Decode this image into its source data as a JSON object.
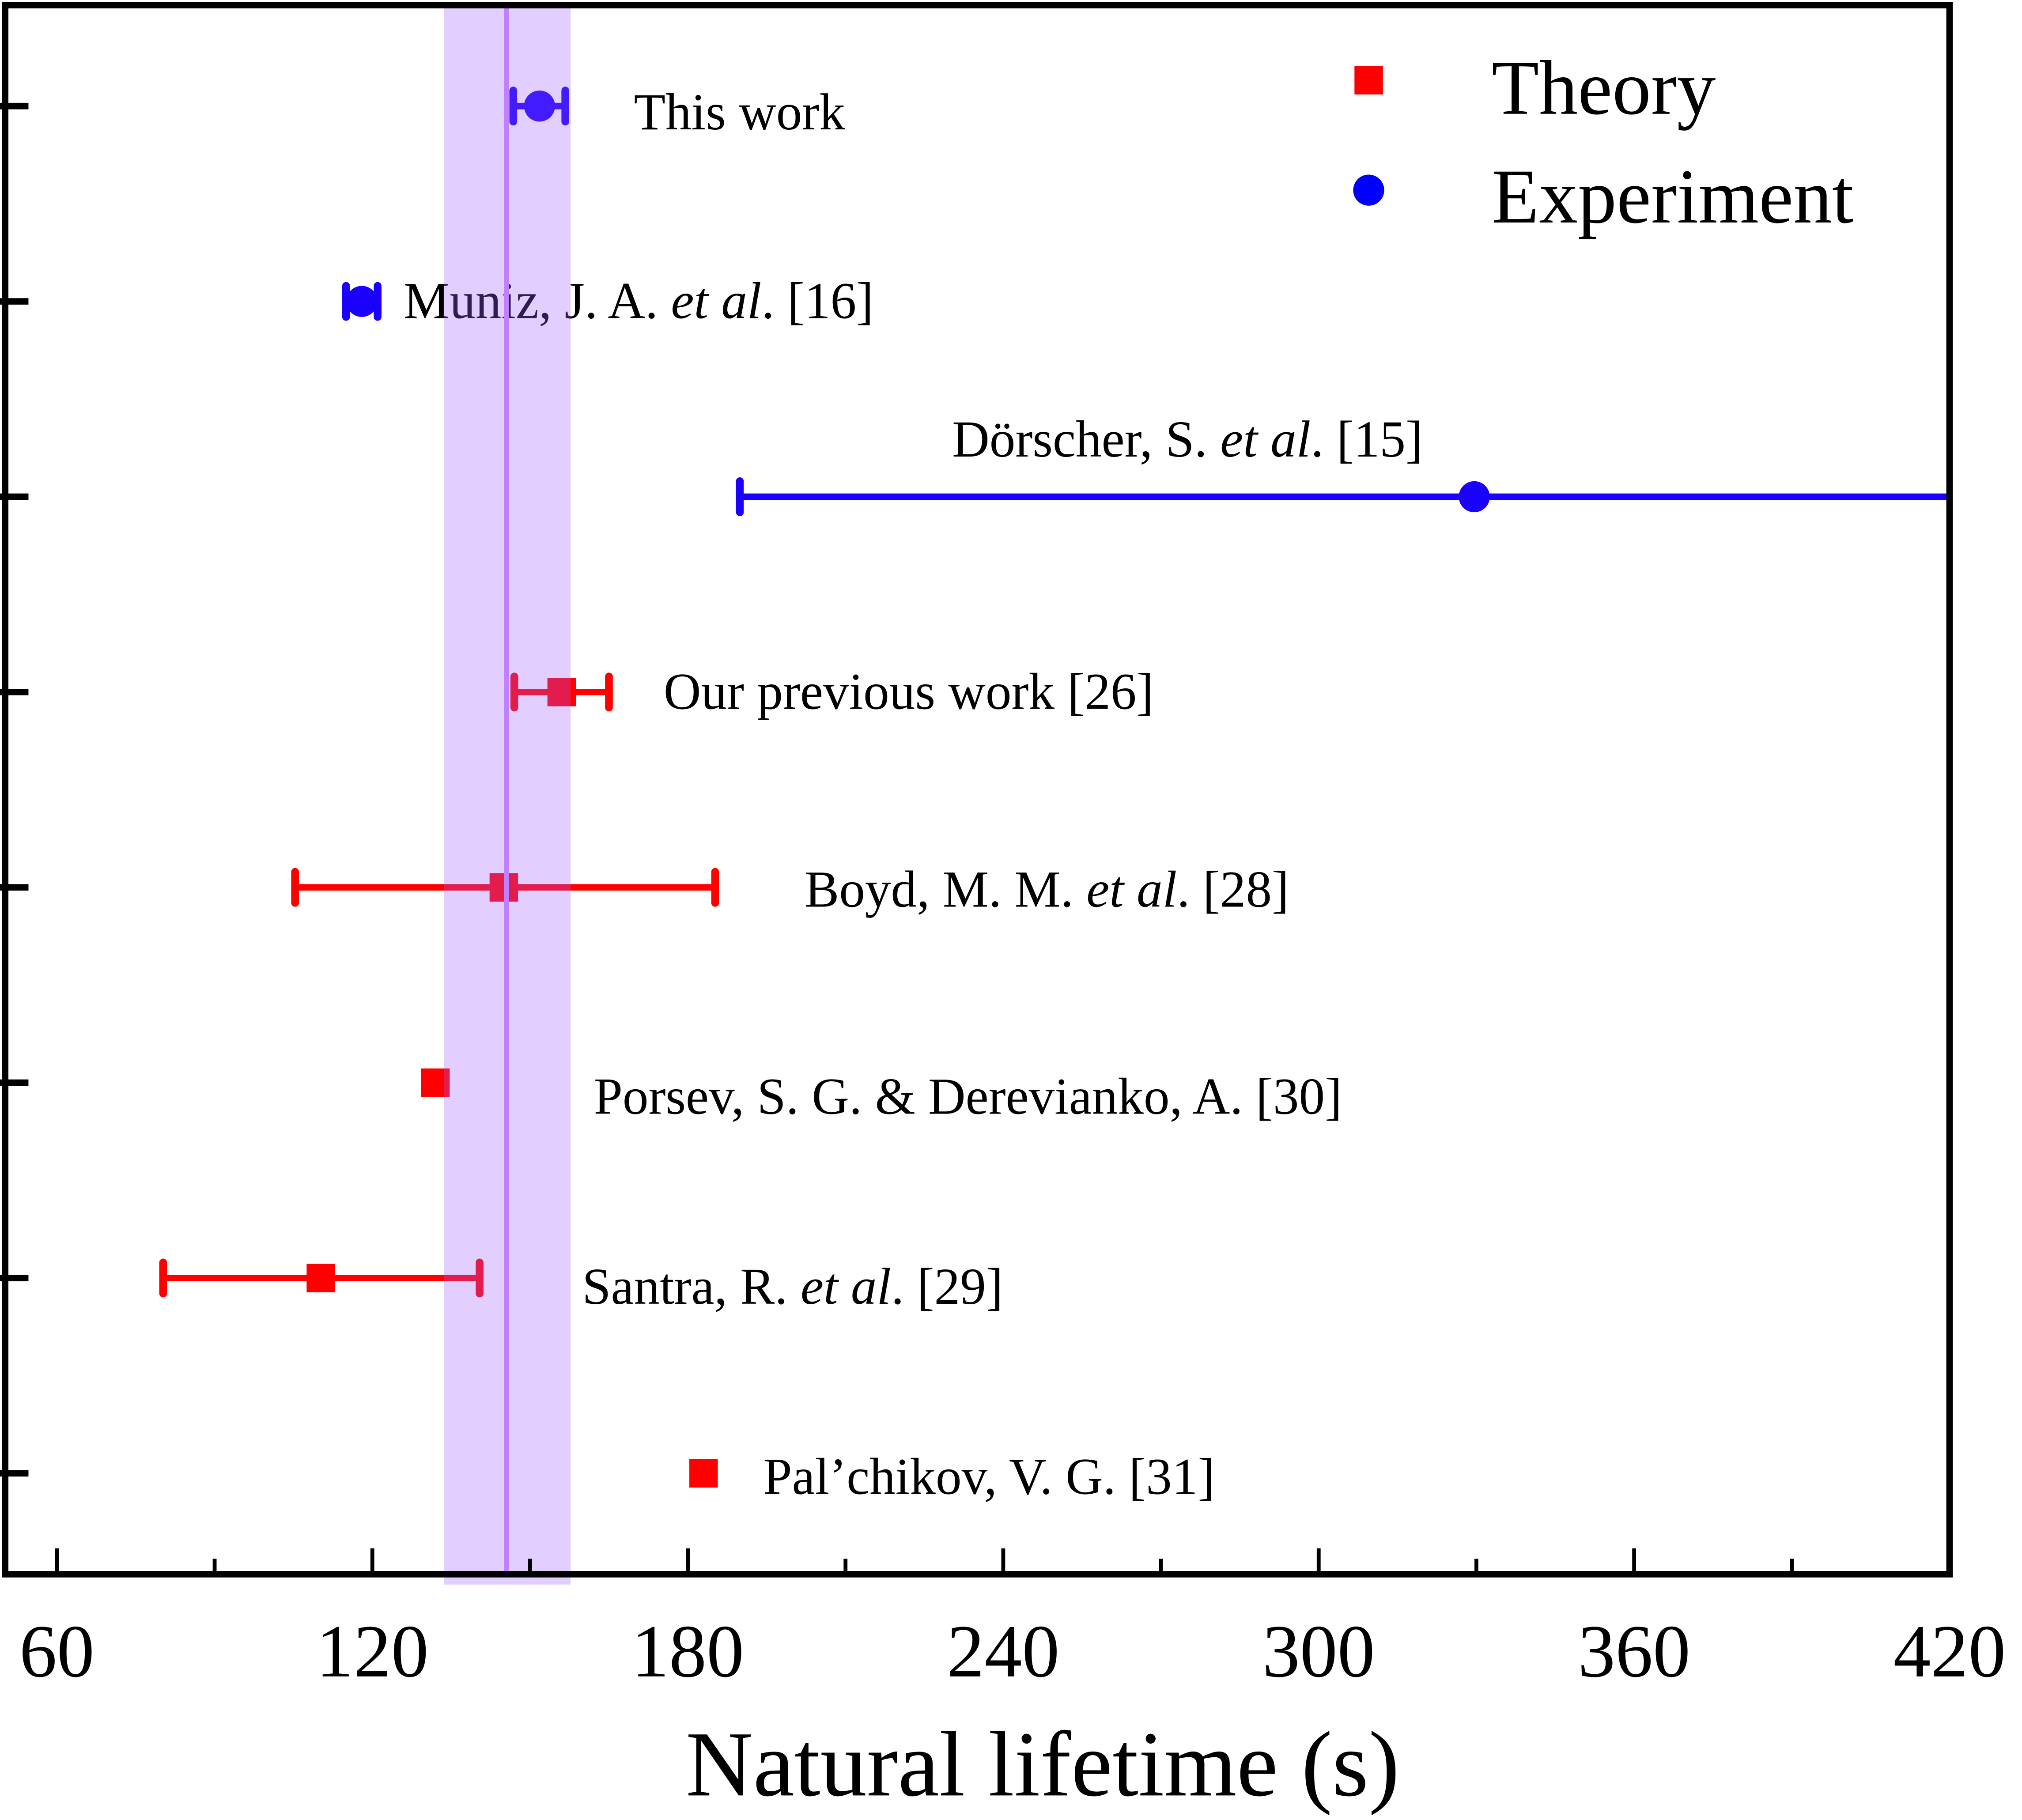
{
  "chart_data": {
    "type": "scatter",
    "title": "",
    "xlabel": "Natural lifetime (s)",
    "ylabel": "",
    "xlim": [
      50,
      420
    ],
    "xticks": [
      60,
      120,
      180,
      240,
      300,
      360,
      420
    ],
    "xminor_step": 30,
    "grid": false,
    "legend": {
      "placement": "top-right",
      "entries": [
        {
          "name": "Theory",
          "marker": "square",
          "color": "#ff0000"
        },
        {
          "name": "Experiment",
          "marker": "circle",
          "color": "#0000ff"
        }
      ]
    },
    "band": {
      "label": "This work band",
      "center": 145.5,
      "low": 133.6,
      "high": 157.7,
      "fill": "#a05cff",
      "line": "#c080ff"
    },
    "points": [
      {
        "label": "This work",
        "label_pre": "This work",
        "label_it": "",
        "label_post": "",
        "type": "Experiment",
        "value": 151.8,
        "err_low": 146.8,
        "err_high": 156.7
      },
      {
        "label": "Muniz, J. A. et al. [16]",
        "label_pre": "Muniz, J. A. ",
        "label_it": "et al",
        "label_post": ". [16]",
        "type": "Experiment",
        "value": 118,
        "err_low": 115,
        "err_high": 121
      },
      {
        "label": "Dörscher, S. et al. [15]",
        "label_pre": "Dörscher, S. ",
        "label_it": "et al",
        "label_post": ". [15]",
        "type": "Experiment",
        "value": 329.6,
        "err_low": 189.9,
        "err_high": 470
      },
      {
        "label": "Our previous work [26]",
        "label_pre": "Our previous work [26]",
        "label_it": "",
        "label_post": "",
        "type": "Theory",
        "value": 156,
        "err_low": 147,
        "err_high": 165
      },
      {
        "label": "Boyd, M. M. et al. [28]",
        "label_pre": "Boyd, M. M. ",
        "label_it": "et al",
        "label_post": ". [28]",
        "type": "Theory",
        "value": 145,
        "err_low": 105.3,
        "err_high": 185.2
      },
      {
        "label": "Porsev, S. G. & Derevianko, A. [30]",
        "label_pre": "Porsev, S. G. & Derevianko, A. [30]",
        "label_it": "",
        "label_post": "",
        "type": "Theory",
        "value": 132,
        "err_low": null,
        "err_high": null
      },
      {
        "label": "Santra, R. et al. [29]",
        "label_pre": "Santra, R. ",
        "label_it": "et al",
        "label_post": ". [29]",
        "type": "Theory",
        "value": 110.2,
        "err_low": 80.2,
        "err_high": 140.4
      },
      {
        "label": "Pal’chikov, V. G.  [31]",
        "label_pre": "Pal’chikov, V. G.  [31]",
        "label_it": "",
        "label_post": "",
        "type": "Theory",
        "value": 183,
        "err_low": null,
        "err_high": null
      }
    ]
  }
}
